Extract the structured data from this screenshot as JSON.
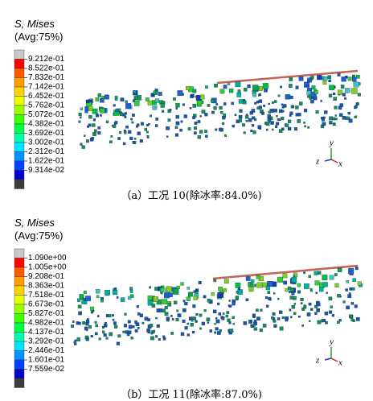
{
  "panels": [
    {
      "legend_title": "S, Mises",
      "legend_subtitle": "(Avg:75%)",
      "legend_values": [
        "9.212e-01",
        "8.522e-01",
        "7.832e-01",
        "7.142e-01",
        "6.452e-01",
        "5.762e-01",
        "5.072e-01",
        "4.382e-01",
        "3.692e-01",
        "3.002e-01",
        "2.312e-01",
        "1.622e-01",
        "9.314e-02"
      ],
      "axes": [
        "y",
        "z",
        "x"
      ],
      "caption": "（a）工况 10(除冰率:84.0%)"
    },
    {
      "legend_title": "S, Mises",
      "legend_subtitle": "(Avg:75%)",
      "legend_values": [
        "1.090e+00",
        "1.005e+00",
        "9.208e-01",
        "8.363e-01",
        "7.518e-01",
        "6.673e-01",
        "5.827e-01",
        "4.982e-01",
        "4.137e-01",
        "3.292e-01",
        "2.446e-01",
        "1.601e-01",
        "7.559e-02"
      ],
      "axes": [
        "y",
        "z",
        "x"
      ],
      "caption": "（b）工况 11(除冰率:87.0%)"
    }
  ]
}
